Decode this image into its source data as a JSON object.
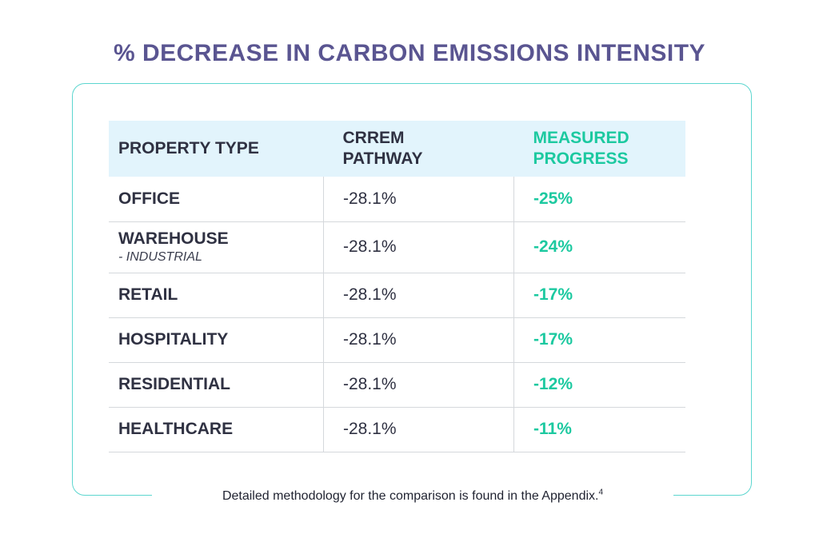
{
  "title": "% DECREASE IN CARBON EMISSIONS INTENSITY",
  "colors": {
    "title": "#5a5591",
    "accent": "#1cc9a0",
    "header_bg": "#e2f4fc",
    "frame": "#5cd6cf"
  },
  "chart_data": {
    "type": "table",
    "columns": [
      "PROPERTY TYPE",
      "CRREM PATHWAY",
      "MEASURED PROGRESS"
    ],
    "rows": [
      {
        "property": "OFFICE",
        "sub": "",
        "crrem": "-28.1%",
        "measured": "-25%"
      },
      {
        "property": "WAREHOUSE",
        "sub": "- INDUSTRIAL",
        "crrem": "-28.1%",
        "measured": "-24%"
      },
      {
        "property": "RETAIL",
        "sub": "",
        "crrem": "-28.1%",
        "measured": "-17%"
      },
      {
        "property": "HOSPITALITY",
        "sub": "",
        "crrem": "-28.1%",
        "measured": "-17%"
      },
      {
        "property": "RESIDENTIAL",
        "sub": "",
        "crrem": "-28.1%",
        "measured": "-12%"
      },
      {
        "property": "HEALTHCARE",
        "sub": "",
        "crrem": "-28.1%",
        "measured": "-11%"
      }
    ]
  },
  "table": {
    "header": {
      "col1": "PROPERTY TYPE",
      "col2_line1": "CRREM",
      "col2_line2": "PATHWAY",
      "col3_line1": "MEASURED",
      "col3_line2": "PROGRESS"
    }
  },
  "footnote": {
    "text": "Detailed methodology for the comparison is found in the Appendix.",
    "ref": "4"
  }
}
